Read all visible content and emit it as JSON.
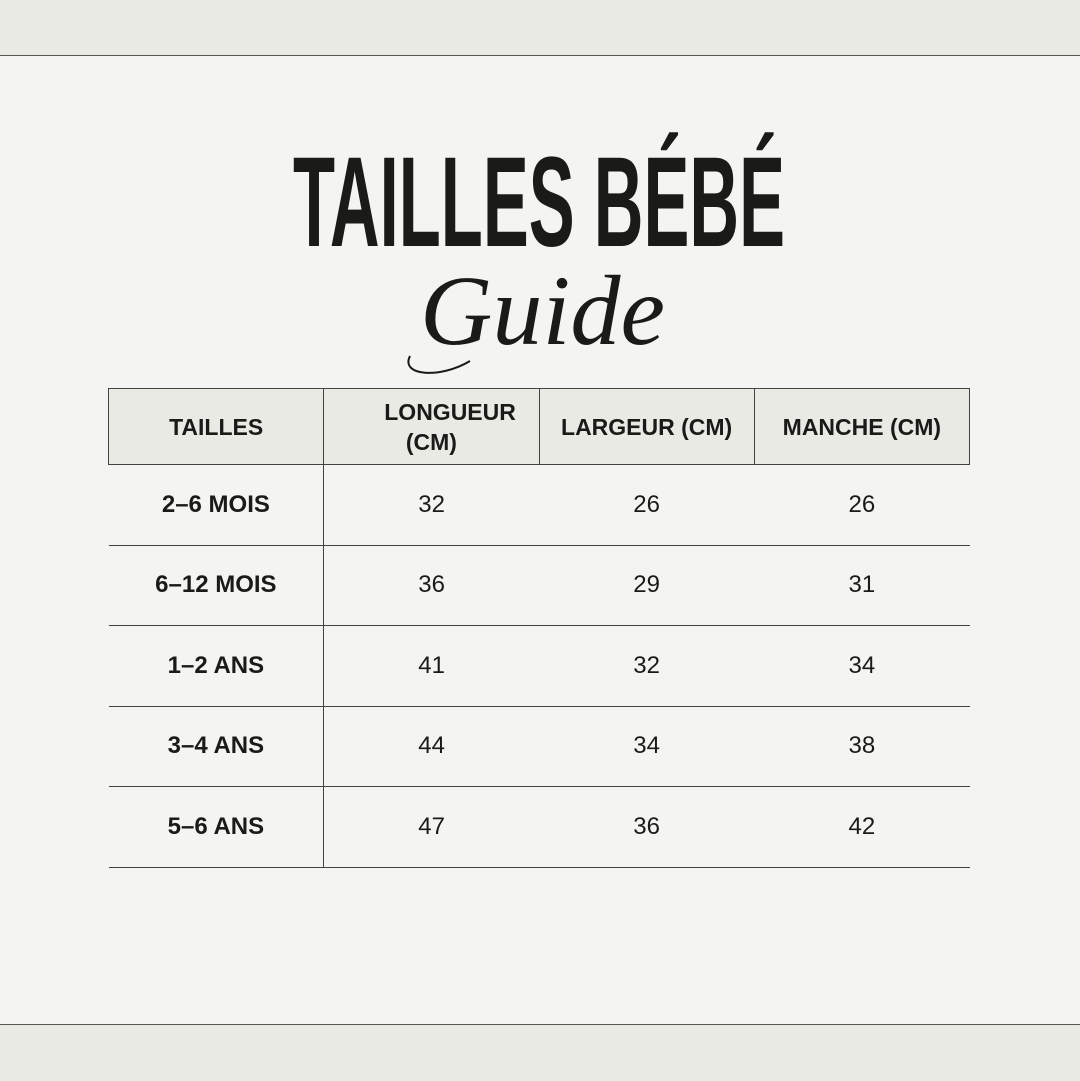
{
  "title": {
    "main": "TAILLES BÉBÉ",
    "script": "Guide"
  },
  "table": {
    "headers": [
      "TAILLES",
      "LONGUEUR (CM)",
      "LARGEUR (CM)",
      "MANCHE (CM)"
    ],
    "rows": [
      [
        "2–6 MOIS",
        "32",
        "26",
        "26"
      ],
      [
        "6–12 MOIS",
        "36",
        "29",
        "31"
      ],
      [
        "1–2 ANS",
        "41",
        "32",
        "34"
      ],
      [
        "3–4 ANS",
        "44",
        "34",
        "38"
      ],
      [
        "5–6 ANS",
        "47",
        "36",
        "42"
      ]
    ]
  },
  "colors": {
    "background": "#f4f4f2",
    "band": "#e9eae4",
    "text": "#1a1a18"
  }
}
